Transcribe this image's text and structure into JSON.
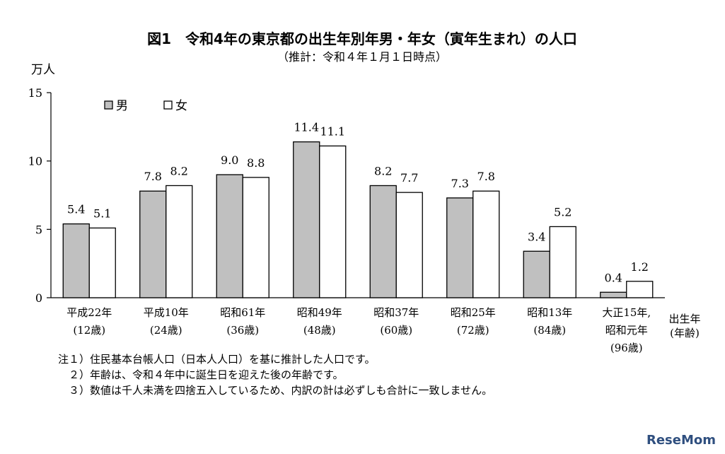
{
  "chart_data": {
    "type": "bar",
    "title": "図1　令和4年の東京都の出生年別年男・年女（寅年生まれ）の人口",
    "subtitle": "（推計：令和４年１月１日時点）",
    "ylabel": "万人",
    "xlabel": [
      "出生年",
      "(年齢)"
    ],
    "ylim": [
      0,
      15
    ],
    "yticks": [
      0,
      5,
      10,
      15
    ],
    "categories": [
      [
        "平成22年",
        "(12歳)"
      ],
      [
        "平成10年",
        "(24歳)"
      ],
      [
        "昭和61年",
        "(36歳)"
      ],
      [
        "昭和49年",
        "(48歳)"
      ],
      [
        "昭和37年",
        "(60歳)"
      ],
      [
        "昭和25年",
        "(72歳)"
      ],
      [
        "昭和13年",
        "(84歳)"
      ],
      [
        "大正15年,",
        "昭和元年",
        "(96歳)"
      ]
    ],
    "series": [
      {
        "name": "男",
        "color": "#c0c0c0",
        "values": [
          5.4,
          7.8,
          9.0,
          11.4,
          8.2,
          7.3,
          3.4,
          0.4
        ],
        "labels": [
          "5.4",
          "7.8",
          "9.0",
          "11.4",
          "8.2",
          "7.3",
          "3.4",
          "0.4"
        ]
      },
      {
        "name": "女",
        "color": "#ffffff",
        "values": [
          5.1,
          8.2,
          8.8,
          11.1,
          7.7,
          7.8,
          5.2,
          1.2
        ],
        "labels": [
          "5.1",
          "8.2",
          "8.8",
          "11.1",
          "7.7",
          "7.8",
          "5.2",
          "1.2"
        ]
      }
    ],
    "legend_position": "top-left",
    "grid": false
  },
  "notes": [
    "注１）住民基本台帳人口（日本人人口）を基に推計した人口です。",
    "　２）年齢は、令和４年中に誕生日を迎えた後の年齢です。",
    "　３）数値は千人未満を四捨五入しているため、内訳の計は必ずしも合計に一致しません。"
  ],
  "brand": "ReseMom"
}
